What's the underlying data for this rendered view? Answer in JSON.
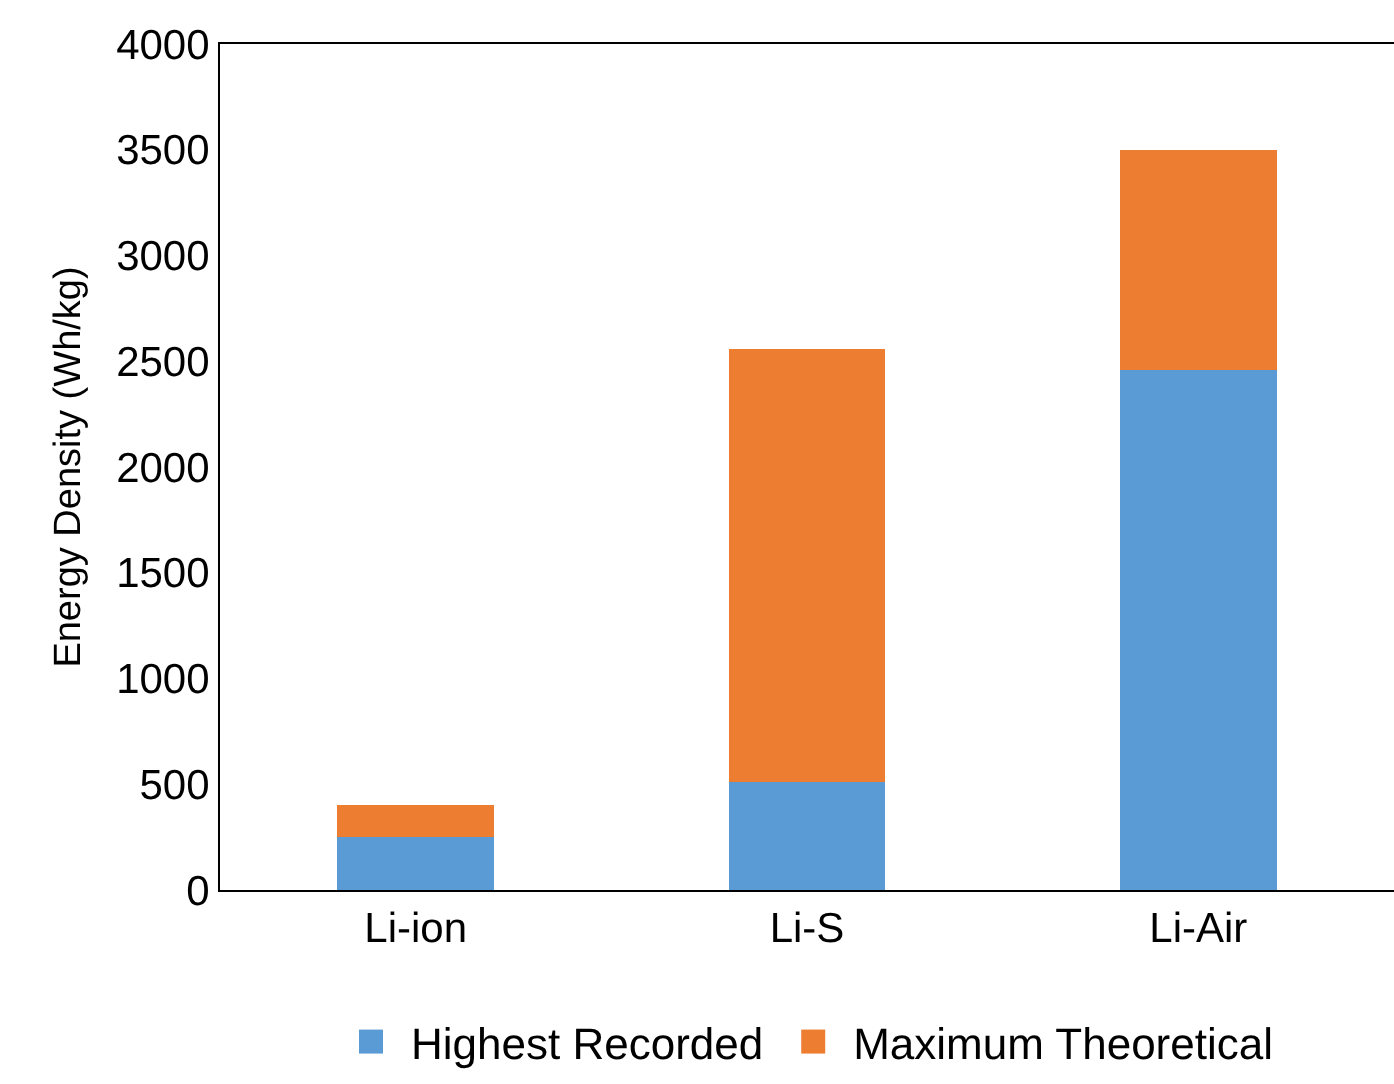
{
  "chart_data": {
    "type": "bar",
    "stacked": true,
    "ylabel": "Energy Density (Wh/kg)",
    "categories": [
      "Li-ion",
      "Li-S",
      "Li-Air"
    ],
    "series": [
      {
        "name": "Highest Recorded",
        "color": "#5b9bd5",
        "values": [
          250,
          510,
          2460
        ]
      },
      {
        "name": "Maximum Theoretical",
        "color": "#ed7d31",
        "values": [
          150,
          2050,
          1040
        ]
      }
    ],
    "ylim": [
      0,
      4000
    ],
    "yticks": [
      0,
      500,
      1000,
      1500,
      2000,
      2500,
      3000,
      3500,
      4000
    ],
    "legend": "bottom"
  }
}
